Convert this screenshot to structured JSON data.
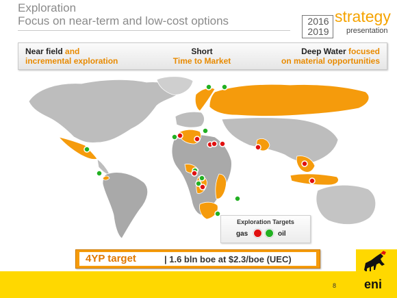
{
  "header": {
    "title": "Exploration",
    "subtitle": "Focus on near-term and low-cost options"
  },
  "logo": {
    "year_start": "2016",
    "year_end": "2019",
    "word": "strategy",
    "sub": "presentation"
  },
  "focus_band": {
    "left_bold": "Near field",
    "left_rest": " and",
    "left_line2": "incremental exploration",
    "center_line1": "Short",
    "center_line2": "Time to Market",
    "right_bold": "Deep Water",
    "right_rest": " focused",
    "right_line2": "on material opportunities"
  },
  "legend": {
    "title": "Exploration Targets",
    "gas_label": "gas",
    "oil_label": "oil"
  },
  "target": {
    "main": "4YP target",
    "rest": "| 1.6 bln boe at $2.3/boe (UEC)"
  },
  "page_number": "8",
  "brand": "eni",
  "colors": {
    "accent": "#f59b0c",
    "footer": "#ffd800",
    "gas": "#e01010",
    "oil": "#22b022",
    "map_grey": "#a9a9a9"
  }
}
